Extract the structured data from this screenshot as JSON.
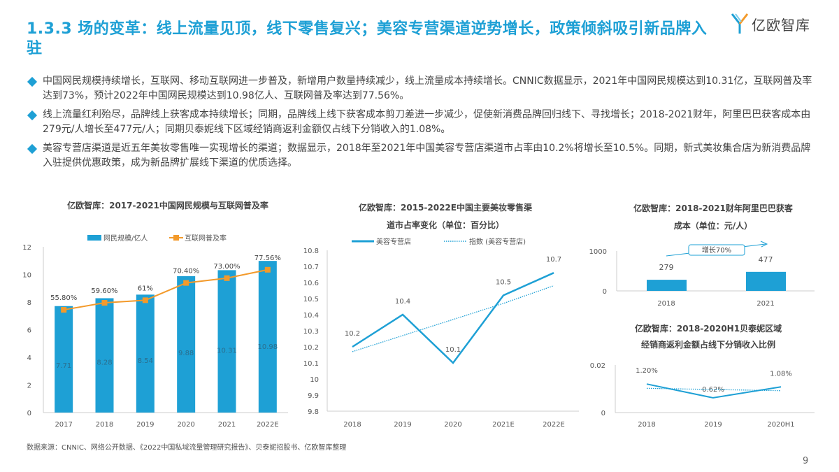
{
  "header": {
    "title": "1.3.3 场的变革：线上流量见顶，线下零售复兴；美容专营渠道逆势增长，政策倾斜吸引新品牌入驻",
    "logo_text": "亿欧智库",
    "accent_color": "#1ea0d5"
  },
  "bullets": [
    {
      "text": "中国网民规模持续增长，互联网、移动互联网进一步普及，新增用户数量持续减少，线上流量成本持续增长。CNNIC数据显示，2021年中国网民规模达到10.31亿，互联网普及率达到73%，预计2022年中国网民规模达到10.98亿人、互联网普及率达到77.56%。"
    },
    {
      "text": "线上流量红利殆尽，品牌线上获客成本持续增长；同期，品牌线上线下获客成本剪刀差进一步减少，促使新消费品牌回归线下、寻找增长；2018-2021财年，阿里巴巴获客成本由279元/人增长至477元/人；同期贝泰妮线下区域经销商返利金额仅占线下分销收入的1.08%。"
    },
    {
      "text": "美容专营店渠道是近五年美妆零售唯一实现增长的渠道；数据显示，2018年至2021年中国美容专营店渠道市占率由10.2%将增长至10.5%。同期，新式美妆集合店为新消费品牌入驻提供优惠政策，成为新品牌扩展线下渠道的优质选择。"
    }
  ],
  "chart_data": [
    {
      "type": "bar",
      "title": "亿欧智库：2017-2021中国网民规模与互联网普及率",
      "categories": [
        "2017",
        "2018",
        "2019",
        "2020",
        "2021",
        "2022E"
      ],
      "ylim": [
        0,
        12
      ],
      "yticks": [
        "0",
        "2",
        "4",
        "6",
        "8",
        "10",
        "12"
      ],
      "series": [
        {
          "name": "网民规模/亿人",
          "type": "bar",
          "values": [
            7.71,
            8.28,
            8.54,
            9.88,
            10.31,
            10.98
          ],
          "labels": [
            "7.71",
            "8.28",
            "8.54",
            "9.88",
            "10.31",
            "10.98"
          ],
          "color": "#1ea0d5"
        },
        {
          "name": "互联网普及率",
          "type": "line",
          "axis": "secondary",
          "ylim": [
            0,
            90
          ],
          "values": [
            55.8,
            59.6,
            61,
            70.4,
            73.0,
            77.56
          ],
          "labels": [
            "55.80%",
            "59.60%",
            "61%",
            "70.40%",
            "73.00%",
            "77.56%"
          ],
          "color": "#f39a2b"
        }
      ],
      "legend": "top"
    },
    {
      "type": "line",
      "title": "亿欧智库：2015-2022E中国主要美妆零售渠道市占率变化（单位：百分比）",
      "categories": [
        "2018",
        "2019",
        "2020",
        "2021E",
        "2022E"
      ],
      "ylim": [
        9.8,
        10.8
      ],
      "yticks": [
        "9.8",
        "9.9",
        "10",
        "10.1",
        "10.2",
        "10.3",
        "10.4",
        "10.5",
        "10.6",
        "10.7",
        "10.8"
      ],
      "series": [
        {
          "name": "美容专营店",
          "values": [
            10.2,
            10.4,
            10.1,
            10.52,
            10.66
          ],
          "labels": [
            "10.2",
            "10.4",
            "10.1",
            "10.5",
            "10.7"
          ],
          "color": "#1ea0d5"
        },
        {
          "name": "指数 (美容专营店)",
          "style": "dotted",
          "values": [
            10.17,
            10.27,
            10.37,
            10.47,
            10.58
          ],
          "color": "#1ea0d5"
        }
      ],
      "legend": "top"
    },
    {
      "type": "bar",
      "title": "亿欧智库：2018-2021财年阿里巴巴获客成本（单位：元/人）",
      "categories": [
        "2018",
        "2021"
      ],
      "ylim": [
        0,
        1000
      ],
      "yticks": [
        "0",
        "1000"
      ],
      "values": [
        279,
        477
      ],
      "labels": [
        "279",
        "477"
      ],
      "annotation": "增长70%",
      "color": "#1ea0d5"
    },
    {
      "type": "line",
      "title": "亿欧智库：2018-2020H1贝泰妮区域经销商返利金额占线下分销收入比例",
      "categories": [
        "2018",
        "2019",
        "2020H1"
      ],
      "ylim": [
        0,
        0.02
      ],
      "yticks": [
        "0",
        "0.02"
      ],
      "series": [
        {
          "values": [
            0.012,
            0.0062,
            0.0108
          ],
          "labels": [
            "1.20%",
            "0.62%",
            "1.08%"
          ],
          "color": "#1ea0d5"
        },
        {
          "style": "dotted",
          "values": [
            0.0102,
            0.0097,
            0.0092
          ],
          "color": "#1ea0d5"
        }
      ]
    }
  ],
  "footer": {
    "source": "数据来源：CNNIC、网络公开数据、《2022中国私域流量管理研究报告》、贝泰妮招股书、亿欧智库整理",
    "page_number": "9"
  }
}
